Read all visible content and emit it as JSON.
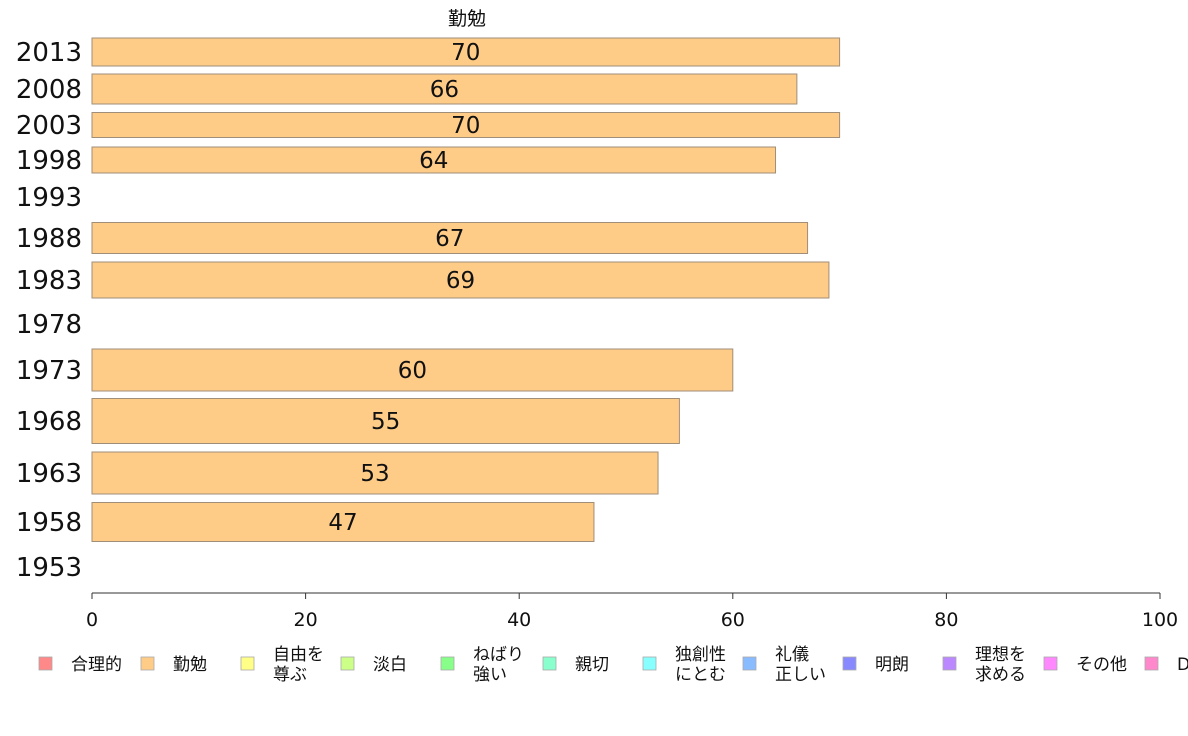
{
  "chart_data": {
    "type": "bar",
    "orientation": "horizontal",
    "title": "勤勉",
    "categories": [
      "2013",
      "2008",
      "2003",
      "1998",
      "1993",
      "1988",
      "1983",
      "1978",
      "1973",
      "1968",
      "1963",
      "1958",
      "1953"
    ],
    "values": [
      70,
      66,
      70,
      64,
      null,
      67,
      69,
      null,
      60,
      55,
      53,
      47,
      null
    ],
    "bar_color": "#ffcc88",
    "bar_stroke": "#a08e78",
    "xlim": [
      0,
      100
    ],
    "xticks": [
      0,
      20,
      40,
      60,
      80,
      100
    ],
    "legend": [
      {
        "label": "合理的",
        "color": "#ff8888"
      },
      {
        "label": "勤勉",
        "color": "#ffcc88"
      },
      {
        "label": "自由を\n尊ぶ",
        "color": "#ffff88"
      },
      {
        "label": "淡白",
        "color": "#ccff88"
      },
      {
        "label": "ねばり\n強い",
        "color": "#88ff88"
      },
      {
        "label": "親切",
        "color": "#88ffcc"
      },
      {
        "label": "独創性\nにとむ",
        "color": "#88ffff"
      },
      {
        "label": "礼儀\n正しい",
        "color": "#88bbff"
      },
      {
        "label": "明朗",
        "color": "#8888ff"
      },
      {
        "label": "理想を\n求める",
        "color": "#bb88ff"
      },
      {
        "label": "その他",
        "color": "#ff88ff"
      },
      {
        "label": "D",
        "color": "#ff88cc"
      }
    ],
    "legend_position": "bottom"
  }
}
